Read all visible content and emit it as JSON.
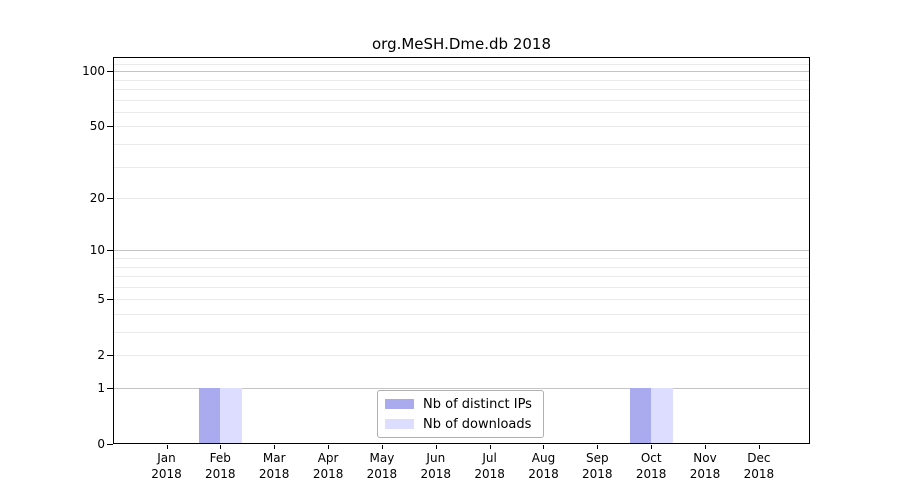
{
  "window": {
    "background": "#ffffff"
  },
  "chart_data": {
    "type": "bar",
    "title": "org.MeSH.Dme.db 2018",
    "categories": [
      "Jan 2018",
      "Feb 2018",
      "Mar 2018",
      "Apr 2018",
      "May 2018",
      "Jun 2018",
      "Jul 2018",
      "Aug 2018",
      "Sep 2018",
      "Oct 2018",
      "Nov 2018",
      "Dec 2018"
    ],
    "series": [
      {
        "name": "Nb of distinct IPs",
        "color": "#aaaaee",
        "values": [
          0,
          1,
          0,
          0,
          0,
          0,
          0,
          0,
          0,
          1,
          0,
          0
        ]
      },
      {
        "name": "Nb of downloads",
        "color": "#ddddff",
        "values": [
          0,
          1,
          0,
          0,
          0,
          0,
          0,
          0,
          0,
          1,
          0,
          0
        ]
      }
    ],
    "y_axis": {
      "scale": "log1p",
      "tick_values": [
        0,
        1,
        2,
        5,
        10,
        20,
        50,
        100
      ],
      "range_max": 119
    },
    "x_axis": {
      "tick_count": 12
    },
    "grid": {
      "on": true,
      "major_values": [
        1,
        10,
        100
      ],
      "minor_values": [
        2,
        3,
        4,
        5,
        6,
        7,
        8,
        9,
        20,
        30,
        40,
        50,
        60,
        70,
        80,
        90,
        110
      ],
      "major_color": "#c4c4c4",
      "minor_color": "#eaeaea"
    },
    "legend_position": "bottom-center",
    "axis_color": "#000000"
  }
}
